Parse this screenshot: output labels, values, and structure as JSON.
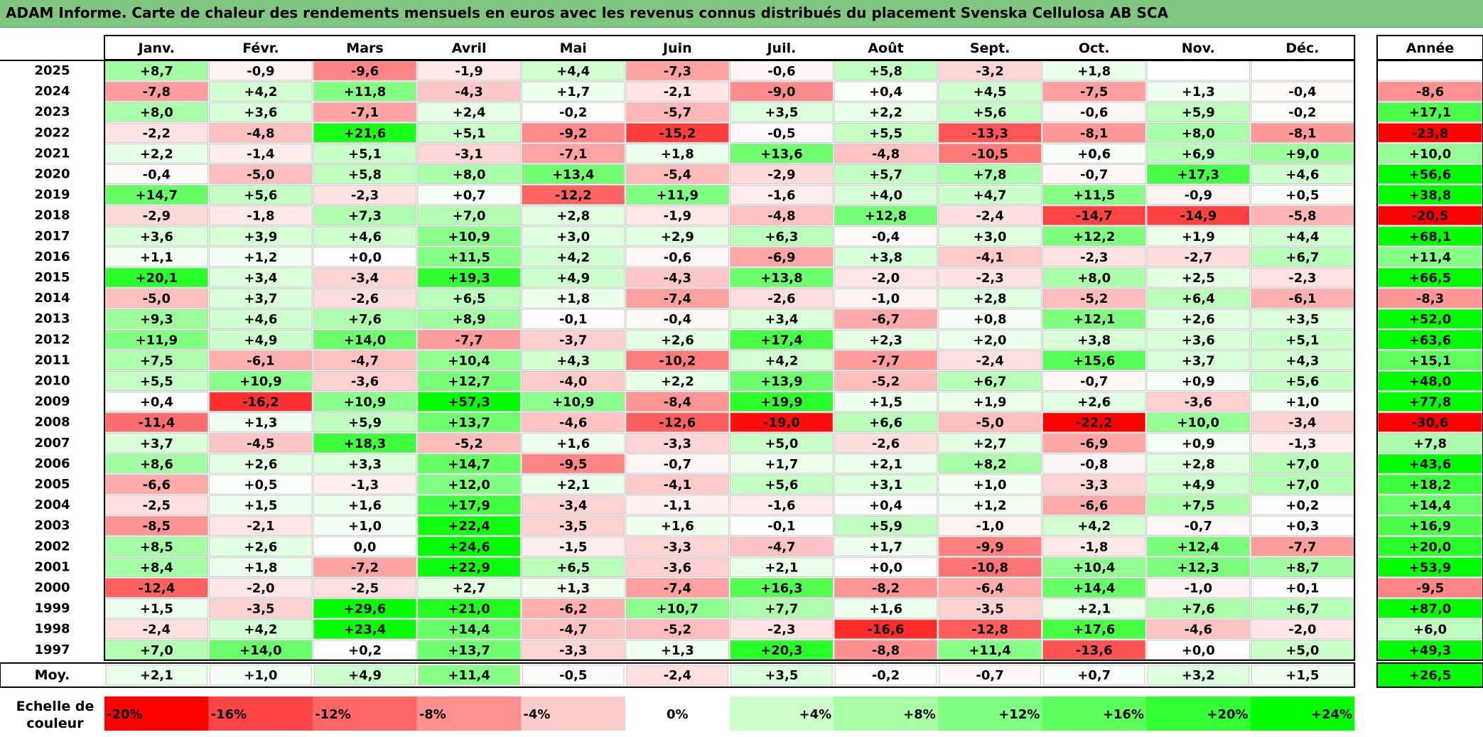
{
  "title": "ADAM Informe. Carte de chaleur des rendements mensuels en euros avec les revenus connus distribués du placement Svenska Cellulosa AB SCA",
  "chart_data": {
    "type": "heatmap",
    "months": [
      "Janv.",
      "Févr.",
      "Mars",
      "Avril",
      "Mai",
      "Juin",
      "Juil.",
      "Août",
      "Sept.",
      "Oct.",
      "Nov.",
      "Déc."
    ],
    "year_header": "Année",
    "avg_label": "Moy.",
    "rows": [
      {
        "year": "2025",
        "months": [
          "+8,7",
          "-0,9",
          "-9,6",
          "-1,9",
          "+4,4",
          "-7,3",
          "-0,6",
          "+5,8",
          "-3,2",
          "+1,8",
          "",
          ""
        ],
        "annual": ""
      },
      {
        "year": "2024",
        "months": [
          "-7,8",
          "+4,2",
          "+11,8",
          "-4,3",
          "+1,7",
          "-2,1",
          "-9,0",
          "+0,4",
          "+4,5",
          "-7,5",
          "+1,3",
          "-0,4"
        ],
        "annual": "-8,6"
      },
      {
        "year": "2023",
        "months": [
          "+8,0",
          "+3,6",
          "-7,1",
          "+2,4",
          "-0,2",
          "-5,7",
          "+3,5",
          "+2,2",
          "+5,6",
          "-0,6",
          "+5,9",
          "-0,2"
        ],
        "annual": "+17,1"
      },
      {
        "year": "2022",
        "months": [
          "-2,2",
          "-4,8",
          "+21,6",
          "+5,1",
          "-9,2",
          "-15,2",
          "-0,5",
          "+5,5",
          "-13,3",
          "-8,1",
          "+8,0",
          "-8,1"
        ],
        "annual": "-23,8"
      },
      {
        "year": "2021",
        "months": [
          "+2,2",
          "-1,4",
          "+5,1",
          "-3,1",
          "-7,1",
          "+1,8",
          "+13,6",
          "-4,8",
          "-10,5",
          "+0,6",
          "+6,9",
          "+9,0"
        ],
        "annual": "+10,0"
      },
      {
        "year": "2020",
        "months": [
          "-0,4",
          "-5,0",
          "+5,8",
          "+8,0",
          "+13,4",
          "-5,4",
          "-2,9",
          "+5,7",
          "+7,8",
          "-0,7",
          "+17,3",
          "+4,6"
        ],
        "annual": "+56,6"
      },
      {
        "year": "2019",
        "months": [
          "+14,7",
          "+5,6",
          "-2,3",
          "+0,7",
          "-12,2",
          "+11,9",
          "-1,6",
          "+4,0",
          "+4,7",
          "+11,5",
          "-0,9",
          "+0,5"
        ],
        "annual": "+38,8"
      },
      {
        "year": "2018",
        "months": [
          "-2,9",
          "-1,8",
          "+7,3",
          "+7,0",
          "+2,8",
          "-1,9",
          "-4,8",
          "+12,8",
          "-2,4",
          "-14,7",
          "-14,9",
          "-5,8"
        ],
        "annual": "-20,5"
      },
      {
        "year": "2017",
        "months": [
          "+3,6",
          "+3,9",
          "+4,6",
          "+10,9",
          "+3,0",
          "+2,9",
          "+6,3",
          "-0,4",
          "+3,0",
          "+12,2",
          "+1,9",
          "+4,4"
        ],
        "annual": "+68,1"
      },
      {
        "year": "2016",
        "months": [
          "+1,1",
          "+1,2",
          "+0,0",
          "+11,5",
          "+4,2",
          "-0,6",
          "-6,9",
          "+3,8",
          "-4,1",
          "-2,3",
          "-2,7",
          "+6,7"
        ],
        "annual": "+11,4"
      },
      {
        "year": "2015",
        "months": [
          "+20,1",
          "+3,4",
          "-3,4",
          "+19,3",
          "+4,9",
          "-4,3",
          "+13,8",
          "-2,0",
          "-2,3",
          "+8,0",
          "+2,5",
          "-2,3"
        ],
        "annual": "+66,5"
      },
      {
        "year": "2014",
        "months": [
          "-5,0",
          "+3,7",
          "-2,6",
          "+6,5",
          "+1,8",
          "-7,4",
          "-2,6",
          "-1,0",
          "+2,8",
          "-5,2",
          "+6,4",
          "-6,1"
        ],
        "annual": "-8,3"
      },
      {
        "year": "2013",
        "months": [
          "+9,3",
          "+4,6",
          "+7,6",
          "+8,9",
          "-0,1",
          "-0,4",
          "+3,4",
          "-6,7",
          "+0,8",
          "+12,1",
          "+2,6",
          "+3,5"
        ],
        "annual": "+52,0"
      },
      {
        "year": "2012",
        "months": [
          "+11,9",
          "+4,9",
          "+14,0",
          "-7,7",
          "-3,7",
          "+2,6",
          "+17,4",
          "+2,3",
          "+2,0",
          "+3,8",
          "+3,6",
          "+5,1"
        ],
        "annual": "+63,6"
      },
      {
        "year": "2011",
        "months": [
          "+7,5",
          "-6,1",
          "-4,7",
          "+10,4",
          "+4,3",
          "-10,2",
          "+4,2",
          "-7,7",
          "-2,4",
          "+15,6",
          "+3,7",
          "+4,3"
        ],
        "annual": "+15,1"
      },
      {
        "year": "2010",
        "months": [
          "+5,5",
          "+10,9",
          "-3,6",
          "+12,7",
          "-4,0",
          "+2,2",
          "+13,9",
          "-5,2",
          "+6,7",
          "-0,7",
          "+0,9",
          "+5,6"
        ],
        "annual": "+48,0"
      },
      {
        "year": "2009",
        "months": [
          "+0,4",
          "-16,2",
          "+10,9",
          "+57,3",
          "+10,9",
          "-8,4",
          "+19,9",
          "+1,5",
          "+1,9",
          "+2,6",
          "-3,6",
          "+1,0"
        ],
        "annual": "+77,8"
      },
      {
        "year": "2008",
        "months": [
          "-11,4",
          "+1,3",
          "+5,9",
          "+13,7",
          "-4,6",
          "-12,6",
          "-19,0",
          "+6,6",
          "-5,0",
          "-22,2",
          "+10,0",
          "-3,4"
        ],
        "annual": "-30,6"
      },
      {
        "year": "2007",
        "months": [
          "+3,7",
          "-4,5",
          "+18,3",
          "-5,2",
          "+1,6",
          "-3,3",
          "+5,0",
          "-2,6",
          "+2,7",
          "-6,9",
          "+0,9",
          "-1,3"
        ],
        "annual": "+7,8"
      },
      {
        "year": "2006",
        "months": [
          "+8,6",
          "+2,6",
          "+3,3",
          "+14,7",
          "-9,5",
          "-0,7",
          "+1,7",
          "+2,1",
          "+8,2",
          "-0,8",
          "+2,8",
          "+7,0"
        ],
        "annual": "+43,6"
      },
      {
        "year": "2005",
        "months": [
          "-6,6",
          "+0,5",
          "-1,3",
          "+12,0",
          "+2,1",
          "-4,1",
          "+5,6",
          "+3,1",
          "+1,0",
          "-3,3",
          "+4,9",
          "+7,0"
        ],
        "annual": "+18,2"
      },
      {
        "year": "2004",
        "months": [
          "-2,5",
          "+1,5",
          "+1,6",
          "+17,9",
          "-3,4",
          "-1,1",
          "-1,6",
          "+0,4",
          "+1,2",
          "-6,6",
          "+7,5",
          "+0,2"
        ],
        "annual": "+14,4"
      },
      {
        "year": "2003",
        "months": [
          "-8,5",
          "-2,1",
          "+1,0",
          "+22,4",
          "-3,5",
          "+1,6",
          "-0,1",
          "+5,9",
          "-1,0",
          "+4,2",
          "-0,7",
          "+0,3"
        ],
        "annual": "+16,9"
      },
      {
        "year": "2002",
        "months": [
          "+8,5",
          "+2,6",
          "0,0",
          "+24,6",
          "-1,5",
          "-3,3",
          "-4,7",
          "+1,7",
          "-9,9",
          "-1,8",
          "+12,4",
          "-7,7"
        ],
        "annual": "+20,0"
      },
      {
        "year": "2001",
        "months": [
          "+8,4",
          "+1,8",
          "-7,2",
          "+22,9",
          "+6,5",
          "-3,6",
          "+2,1",
          "+0,0",
          "-10,8",
          "+10,4",
          "+12,3",
          "+8,7"
        ],
        "annual": "+53,9"
      },
      {
        "year": "2000",
        "months": [
          "-12,4",
          "-2,0",
          "-2,5",
          "+2,7",
          "+1,3",
          "-7,4",
          "+16,3",
          "-8,2",
          "-6,4",
          "+14,4",
          "-1,0",
          "+0,1"
        ],
        "annual": "-9,5"
      },
      {
        "year": "1999",
        "months": [
          "+1,5",
          "-3,5",
          "+29,6",
          "+21,0",
          "-6,2",
          "+10,7",
          "+7,7",
          "+1,6",
          "-3,5",
          "+2,1",
          "+7,6",
          "+6,7"
        ],
        "annual": "+87,0"
      },
      {
        "year": "1998",
        "months": [
          "-2,4",
          "+4,2",
          "+23,4",
          "+14,4",
          "-4,7",
          "-5,2",
          "-2,3",
          "-16,6",
          "-12,8",
          "+17,6",
          "-4,6",
          "-2,0"
        ],
        "annual": "+6,0"
      },
      {
        "year": "1997",
        "months": [
          "+7,0",
          "+14,0",
          "+0,2",
          "+13,7",
          "-3,3",
          "+1,3",
          "+20,3",
          "-8,8",
          "+11,4",
          "-13,6",
          "+0,0",
          "+5,0"
        ],
        "annual": "+49,3"
      }
    ],
    "average": {
      "months": [
        "+2,1",
        "+1,0",
        "+4,9",
        "+11,4",
        "-0,5",
        "-2,4",
        "+3,5",
        "-0,2",
        "-0,7",
        "+0,7",
        "+3,2",
        "+1,5"
      ],
      "annual": "+26,5"
    },
    "legend_label_1": "Echelle de",
    "legend_label_2": "couleur",
    "color_scale": {
      "stops": [
        "-20%",
        "-16%",
        "-12%",
        "-8%",
        "-4%",
        "0%",
        "+4%",
        "+8%",
        "+12%",
        "+16%",
        "+20%",
        "+24%"
      ],
      "min": -20,
      "max": 24,
      "colors": [
        "#ff0000",
        "#ff4545",
        "#ff6666",
        "#ff9090",
        "#ffcccc",
        "#ffffff",
        "#ccffcc",
        "#a8ffa8",
        "#80ff80",
        "#5cff5c",
        "#33ff33",
        "#00ff00"
      ]
    }
  }
}
